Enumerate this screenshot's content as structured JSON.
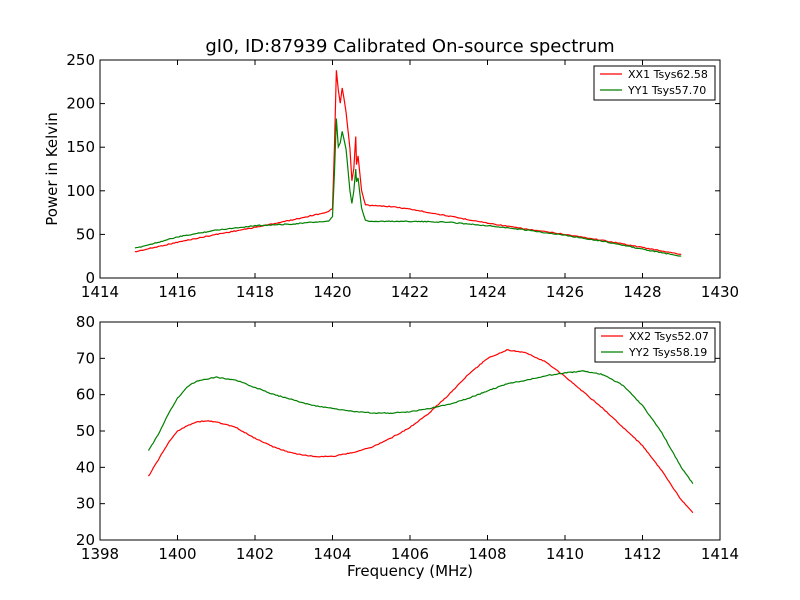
{
  "chart_data": [
    {
      "type": "line",
      "title": "gI0, ID:87939 Calibrated On-source spectrum",
      "xlabel": "",
      "ylabel": "Power in Kelvin",
      "xlim": [
        1414,
        1430
      ],
      "ylim": [
        0,
        250
      ],
      "xticks": [
        1414,
        1416,
        1418,
        1420,
        1422,
        1424,
        1426,
        1428,
        1430
      ],
      "yticks": [
        0,
        50,
        100,
        150,
        200,
        250
      ],
      "grid": false,
      "legend_position": "top-right",
      "series": [
        {
          "name": "XX1 Tsys62.58",
          "color": "#ff0000",
          "points": [
            [
              1414.9,
              30
            ],
            [
              1415.5,
              36
            ],
            [
              1416,
              41
            ],
            [
              1417,
              50
            ],
            [
              1418,
              58
            ],
            [
              1419,
              67
            ],
            [
              1419.5,
              72
            ],
            [
              1419.9,
              76
            ],
            [
              1420,
              80
            ],
            [
              1420.05,
              150
            ],
            [
              1420.1,
              238
            ],
            [
              1420.15,
              215
            ],
            [
              1420.2,
              200
            ],
            [
              1420.25,
              218
            ],
            [
              1420.3,
              205
            ],
            [
              1420.35,
              190
            ],
            [
              1420.45,
              148
            ],
            [
              1420.5,
              112
            ],
            [
              1420.55,
              125
            ],
            [
              1420.6,
              162
            ],
            [
              1420.62,
              130
            ],
            [
              1420.66,
              140
            ],
            [
              1420.75,
              100
            ],
            [
              1420.85,
              84
            ],
            [
              1421,
              83
            ],
            [
              1421.5,
              82
            ],
            [
              1422,
              79
            ],
            [
              1423,
              71
            ],
            [
              1424,
              63
            ],
            [
              1425,
              56
            ],
            [
              1426,
              50
            ],
            [
              1427,
              43
            ],
            [
              1428,
              35
            ],
            [
              1429,
              27
            ]
          ]
        },
        {
          "name": "YY1 Tsys57.70",
          "color": "#008000",
          "points": [
            [
              1414.9,
              34
            ],
            [
              1415.5,
              41
            ],
            [
              1416,
              47
            ],
            [
              1417,
              55
            ],
            [
              1418,
              60
            ],
            [
              1419,
              62
            ],
            [
              1419.5,
              64
            ],
            [
              1419.9,
              65
            ],
            [
              1420,
              70
            ],
            [
              1420.05,
              120
            ],
            [
              1420.1,
              183
            ],
            [
              1420.15,
              150
            ],
            [
              1420.2,
              155
            ],
            [
              1420.25,
              168
            ],
            [
              1420.3,
              158
            ],
            [
              1420.35,
              148
            ],
            [
              1420.45,
              100
            ],
            [
              1420.5,
              85
            ],
            [
              1420.55,
              100
            ],
            [
              1420.6,
              125
            ],
            [
              1420.62,
              110
            ],
            [
              1420.66,
              115
            ],
            [
              1420.75,
              80
            ],
            [
              1420.85,
              66
            ],
            [
              1421,
              65
            ],
            [
              1422,
              65
            ],
            [
              1423,
              64
            ],
            [
              1424,
              60
            ],
            [
              1425,
              55
            ],
            [
              1426,
              49
            ],
            [
              1427,
              42
            ],
            [
              1428,
              33
            ],
            [
              1429,
              25
            ]
          ]
        }
      ]
    },
    {
      "type": "line",
      "title": "",
      "xlabel": "Frequency (MHz)",
      "ylabel": "",
      "xlim": [
        1398,
        1414
      ],
      "ylim": [
        20,
        80
      ],
      "xticks": [
        1398,
        1400,
        1402,
        1404,
        1406,
        1408,
        1410,
        1412,
        1414
      ],
      "yticks": [
        20,
        30,
        40,
        50,
        60,
        70,
        80
      ],
      "grid": false,
      "legend_position": "top-right",
      "series": [
        {
          "name": "XX2 Tsys52.07",
          "color": "#ff0000",
          "points": [
            [
              1399.25,
              37.5
            ],
            [
              1399.5,
              42
            ],
            [
              1399.75,
              46.5
            ],
            [
              1400,
              50
            ],
            [
              1400.25,
              51.5
            ],
            [
              1400.5,
              52.5
            ],
            [
              1400.75,
              52.8
            ],
            [
              1401,
              52.5
            ],
            [
              1401.5,
              51
            ],
            [
              1402,
              48
            ],
            [
              1402.5,
              45.5
            ],
            [
              1403,
              43.8
            ],
            [
              1403.5,
              43
            ],
            [
              1404,
              43
            ],
            [
              1404.5,
              44
            ],
            [
              1405,
              45.5
            ],
            [
              1405.5,
              48
            ],
            [
              1406,
              51
            ],
            [
              1406.5,
              55
            ],
            [
              1407,
              60
            ],
            [
              1407.5,
              65.5
            ],
            [
              1408,
              70
            ],
            [
              1408.5,
              72.3
            ],
            [
              1409,
              71.5
            ],
            [
              1409.5,
              69
            ],
            [
              1410,
              65
            ],
            [
              1410.5,
              60.5
            ],
            [
              1411,
              56
            ],
            [
              1411.5,
              51
            ],
            [
              1412,
              46
            ],
            [
              1412.5,
              39
            ],
            [
              1413,
              31
            ],
            [
              1413.3,
              27.5
            ]
          ]
        },
        {
          "name": "YY2 Tsys58.19",
          "color": "#008000",
          "points": [
            [
              1399.25,
              44.5
            ],
            [
              1399.5,
              49
            ],
            [
              1399.75,
              54.5
            ],
            [
              1400,
              59
            ],
            [
              1400.25,
              62.2
            ],
            [
              1400.5,
              63.8
            ],
            [
              1401,
              64.8
            ],
            [
              1401.5,
              64
            ],
            [
              1402,
              62
            ],
            [
              1402.5,
              60
            ],
            [
              1403,
              58.5
            ],
            [
              1403.5,
              57
            ],
            [
              1404,
              56.2
            ],
            [
              1404.5,
              55.4
            ],
            [
              1405,
              55
            ],
            [
              1405.5,
              54.9
            ],
            [
              1406,
              55.3
            ],
            [
              1406.5,
              56.2
            ],
            [
              1407,
              57.3
            ],
            [
              1407.5,
              59
            ],
            [
              1408,
              61
            ],
            [
              1408.5,
              63
            ],
            [
              1409,
              64
            ],
            [
              1409.5,
              65.2
            ],
            [
              1410,
              66
            ],
            [
              1410.5,
              66.5
            ],
            [
              1411,
              65.5
            ],
            [
              1411.5,
              62.5
            ],
            [
              1412,
              57
            ],
            [
              1412.5,
              49.5
            ],
            [
              1413,
              40
            ],
            [
              1413.3,
              35.5
            ]
          ]
        }
      ]
    }
  ]
}
